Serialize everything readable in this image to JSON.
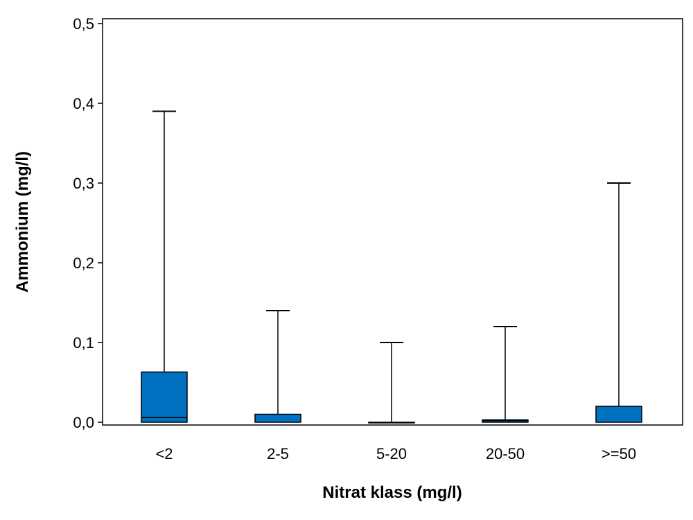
{
  "chart_data": {
    "type": "box",
    "xlabel": "Nitrat klass (mg/l)",
    "ylabel": "Ammonium (mg/l)",
    "ylim": [
      0,
      0.5
    ],
    "y_ticks": [
      {
        "value": 0.0,
        "label": "0,0"
      },
      {
        "value": 0.1,
        "label": "0,1"
      },
      {
        "value": 0.2,
        "label": "0,2"
      },
      {
        "value": 0.3,
        "label": "0,3"
      },
      {
        "value": 0.4,
        "label": "0,4"
      },
      {
        "value": 0.5,
        "label": "0,5"
      }
    ],
    "categories": [
      "<2",
      "2-5",
      "5-20",
      "20-50",
      ">=50"
    ],
    "boxes": [
      {
        "category": "<2",
        "min": 0.0,
        "q1": 0.0,
        "median": 0.006,
        "q3": 0.063,
        "max": 0.39
      },
      {
        "category": "2-5",
        "min": 0.0,
        "q1": 0.0,
        "median": 0.0,
        "q3": 0.01,
        "max": 0.14
      },
      {
        "category": "5-20",
        "min": 0.0,
        "q1": 0.0,
        "median": 0.0,
        "q3": 0.0,
        "max": 0.1
      },
      {
        "category": "20-50",
        "min": 0.0,
        "q1": 0.0,
        "median": 0.002,
        "q3": 0.003,
        "max": 0.12
      },
      {
        "category": ">=50",
        "min": 0.0,
        "q1": 0.0,
        "median": 0.0,
        "q3": 0.02,
        "max": 0.3
      }
    ],
    "box_color": "#0070C0",
    "grid": false,
    "legend": "none"
  }
}
